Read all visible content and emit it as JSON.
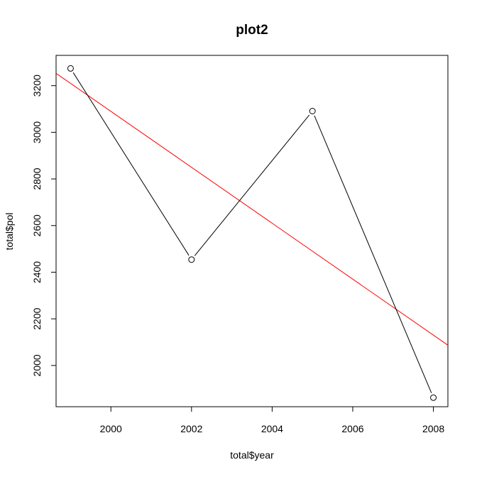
{
  "chart_data": {
    "type": "line",
    "title": "plot2",
    "xlabel": "total$year",
    "ylabel": "total$pol",
    "x_ticks": [
      2000,
      2002,
      2004,
      2006,
      2008
    ],
    "y_ticks": [
      2000,
      2200,
      2400,
      2600,
      2800,
      3000,
      3200
    ],
    "xlim": [
      1998.64,
      2008.36
    ],
    "ylim": [
      1823,
      3330
    ],
    "grid": false,
    "series": [
      {
        "points": [
          {
            "x": 1999,
            "y": 3274
          },
          {
            "x": 2002,
            "y": 2454
          },
          {
            "x": 2005,
            "y": 3091
          },
          {
            "x": 2008,
            "y": 1862
          }
        ],
        "color": "#000000",
        "marker": "open-circle"
      }
    ],
    "regression_line": {
      "color": "#ff0000",
      "intercept_at_x": 1998.64,
      "start_y": 3253,
      "end_x": 2008.36,
      "end_y": 2087
    }
  }
}
